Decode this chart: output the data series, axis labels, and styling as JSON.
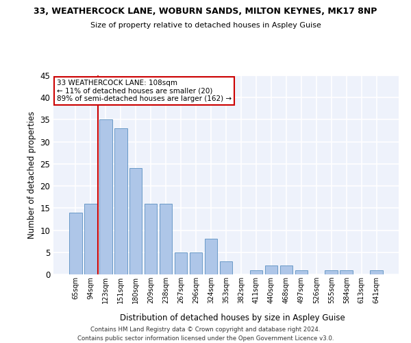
{
  "title1": "33, WEATHERCOCK LANE, WOBURN SANDS, MILTON KEYNES, MK17 8NP",
  "title2": "Size of property relative to detached houses in Aspley Guise",
  "xlabel": "Distribution of detached houses by size in Aspley Guise",
  "ylabel": "Number of detached properties",
  "categories": [
    "65sqm",
    "94sqm",
    "123sqm",
    "151sqm",
    "180sqm",
    "209sqm",
    "238sqm",
    "267sqm",
    "296sqm",
    "324sqm",
    "353sqm",
    "382sqm",
    "411sqm",
    "440sqm",
    "468sqm",
    "497sqm",
    "526sqm",
    "555sqm",
    "584sqm",
    "613sqm",
    "641sqm"
  ],
  "values": [
    14,
    16,
    35,
    33,
    24,
    16,
    16,
    5,
    5,
    8,
    3,
    0,
    1,
    2,
    2,
    1,
    0,
    1,
    1,
    0,
    1
  ],
  "bar_color": "#aec6e8",
  "bar_edge_color": "#5a8fc0",
  "vline_color": "#cc0000",
  "vline_x": 1.5,
  "annotation_text": "33 WEATHERCOCK LANE: 108sqm\n← 11% of detached houses are smaller (20)\n89% of semi-detached houses are larger (162) →",
  "annotation_box_color": "white",
  "annotation_box_edge": "#cc0000",
  "ylim": [
    0,
    45
  ],
  "yticks": [
    0,
    5,
    10,
    15,
    20,
    25,
    30,
    35,
    40,
    45
  ],
  "background_color": "#eef2fb",
  "grid_color": "white",
  "footer1": "Contains HM Land Registry data © Crown copyright and database right 2024.",
  "footer2": "Contains public sector information licensed under the Open Government Licence v3.0."
}
